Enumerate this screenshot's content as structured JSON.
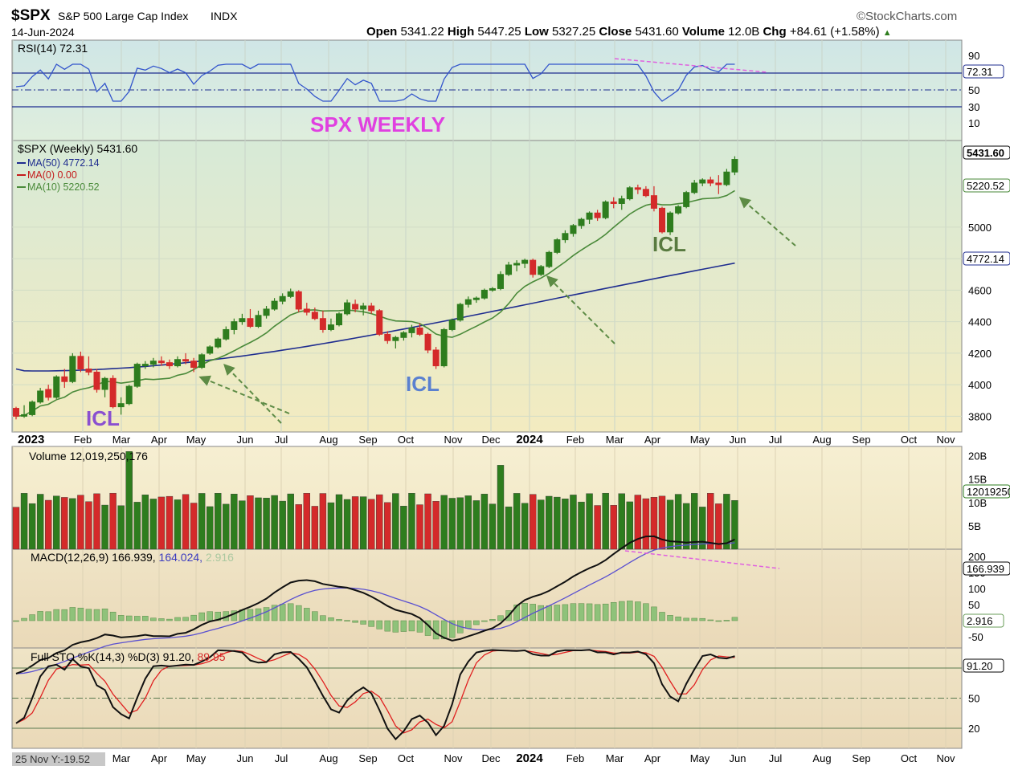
{
  "header": {
    "symbol": "$SPX",
    "name": "S&P 500 Large Cap Index",
    "exchange": "INDX",
    "date": "14-Jun-2024",
    "brand": "©StockCharts.com",
    "quote": {
      "open_label": "Open",
      "open": "5341.22",
      "high_label": "High",
      "high": "5447.25",
      "low_label": "Low",
      "low": "5327.25",
      "close_label": "Close",
      "close": "5431.60",
      "volume_label": "Volume",
      "volume": "12.0B",
      "chg_label": "Chg",
      "chg": "+84.61 (+1.58%)",
      "chg_arrow": "▲"
    }
  },
  "colors": {
    "up": "#2e7d1e",
    "down": "#d42a2a",
    "ma50": "#1f2d8f",
    "ma0": "#c41b1b",
    "ma10": "#4a8a3a",
    "annot_pink": "#e040e0",
    "annot_arrow": "#5d8b45",
    "icl_blue": "#5a80d0",
    "icl_purple": "#8a50d0",
    "icl_green": "#587a40"
  },
  "annotations": {
    "title": "SPX WEEKLY",
    "icl_1": "ICL",
    "icl_2": "ICL",
    "icl_3": "ICL"
  },
  "panels": {
    "rsi": {
      "label": "RSI(14) 72.31",
      "value_tag": "72.31",
      "ticks": [
        "90",
        "70",
        "50",
        "30",
        "10"
      ]
    },
    "price": {
      "label": "$SPX (Weekly) 5431.60",
      "ma50": "MA(50) 4772.14",
      "ma0": "MA(0) 0.00",
      "ma10": "MA(10) 5220.52",
      "tags": {
        "close": "5431.60",
        "ma10": "5220.52",
        "ma50": "4772.14"
      },
      "ticks": [
        "5000",
        "4800",
        "4600",
        "4400",
        "4200",
        "4000",
        "3800"
      ]
    },
    "volume": {
      "label": "Volume 12,019,250,176",
      "value_tag": "12019250176",
      "ticks": [
        "20B",
        "15B",
        "10B",
        "5B"
      ]
    },
    "macd": {
      "label": "MACD(12,26,9)",
      "v1": "166.939,",
      "v2": "164.024,",
      "v3": "2.916",
      "tags": {
        "macd": "166.939",
        "hist": "2.916"
      },
      "ticks": [
        "200",
        "150",
        "100",
        "50",
        "0",
        "-50"
      ]
    },
    "sto": {
      "label": "Full STO %K(14,3) %D(3)",
      "v1": "91.20,",
      "v2": "89.95",
      "value_tag": "91.20",
      "ticks": [
        "80",
        "50",
        "20"
      ]
    }
  },
  "x_axis": {
    "labels": [
      "2023",
      "Feb",
      "Mar",
      "Apr",
      "May",
      "Jun",
      "Jul",
      "Aug",
      "Sep",
      "Oct",
      "Nov",
      "Dec",
      "2024",
      "Feb",
      "Mar",
      "Apr",
      "May",
      "Jun",
      "Jul",
      "Aug",
      "Sep",
      "Oct",
      "Nov"
    ],
    "bottom_labels": [
      "Mar",
      "Apr",
      "May",
      "Jun",
      "Jul",
      "Aug",
      "Sep",
      "Oct",
      "Nov",
      "Dec",
      "2024",
      "Feb",
      "Mar",
      "Apr",
      "May",
      "Jun",
      "Jul",
      "Aug",
      "Sep",
      "Oct",
      "Nov"
    ],
    "cursor_readout": "25 Nov Y:-19.52"
  },
  "chart_data": {
    "type": "candlestick",
    "title": "$SPX (Weekly)",
    "ylim": [
      3700,
      5550
    ],
    "series": [
      {
        "name": "$SPX (Weekly)",
        "candles": [
          [
            3850,
            3860,
            3780,
            3800
          ],
          [
            3800,
            3870,
            3790,
            3810
          ],
          [
            3810,
            3900,
            3800,
            3890
          ],
          [
            3890,
            3980,
            3880,
            3960
          ],
          [
            3970,
            4000,
            3900,
            3920
          ],
          [
            3920,
            4060,
            3910,
            4050
          ],
          [
            4050,
            4100,
            3980,
            4020
          ],
          [
            4020,
            4200,
            4010,
            4180
          ],
          [
            4180,
            4210,
            4080,
            4100
          ],
          [
            4100,
            4180,
            4060,
            4080
          ],
          [
            4080,
            4100,
            3950,
            3970
          ],
          [
            3970,
            4050,
            3920,
            4040
          ],
          [
            4040,
            4060,
            3850,
            3860
          ],
          [
            3860,
            3920,
            3810,
            3880
          ],
          [
            3880,
            4000,
            3870,
            3990
          ],
          [
            3990,
            4140,
            3980,
            4130
          ],
          [
            4120,
            4150,
            4100,
            4130
          ],
          [
            4130,
            4170,
            4110,
            4150
          ],
          [
            4150,
            4180,
            4120,
            4140
          ],
          [
            4140,
            4160,
            4100,
            4120
          ],
          [
            4120,
            4180,
            4110,
            4160
          ],
          [
            4160,
            4200,
            4130,
            4150
          ],
          [
            4150,
            4170,
            4080,
            4110
          ],
          [
            4110,
            4200,
            4100,
            4190
          ],
          [
            4200,
            4250,
            4190,
            4240
          ],
          [
            4240,
            4300,
            4230,
            4290
          ],
          [
            4290,
            4370,
            4280,
            4350
          ],
          [
            4350,
            4420,
            4320,
            4400
          ],
          [
            4400,
            4450,
            4380,
            4420
          ],
          [
            4420,
            4480,
            4360,
            4370
          ],
          [
            4370,
            4470,
            4360,
            4440
          ],
          [
            4440,
            4500,
            4420,
            4480
          ],
          [
            4480,
            4550,
            4470,
            4530
          ],
          [
            4530,
            4580,
            4510,
            4560
          ],
          [
            4560,
            4610,
            4550,
            4590
          ],
          [
            4590,
            4600,
            4460,
            4480
          ],
          [
            4480,
            4520,
            4440,
            4460
          ],
          [
            4460,
            4490,
            4410,
            4420
          ],
          [
            4420,
            4470,
            4330,
            4350
          ],
          [
            4350,
            4420,
            4340,
            4380
          ],
          [
            4380,
            4460,
            4370,
            4450
          ],
          [
            4450,
            4540,
            4440,
            4520
          ],
          [
            4510,
            4540,
            4460,
            4480
          ],
          [
            4480,
            4520,
            4440,
            4500
          ],
          [
            4500,
            4520,
            4450,
            4470
          ],
          [
            4470,
            4480,
            4310,
            4320
          ],
          [
            4320,
            4340,
            4260,
            4280
          ],
          [
            4280,
            4310,
            4230,
            4300
          ],
          [
            4300,
            4340,
            4280,
            4330
          ],
          [
            4330,
            4380,
            4300,
            4360
          ],
          [
            4360,
            4390,
            4310,
            4320
          ],
          [
            4320,
            4330,
            4200,
            4220
          ],
          [
            4220,
            4240,
            4100,
            4120
          ],
          [
            4120,
            4360,
            4110,
            4350
          ],
          [
            4350,
            4420,
            4340,
            4410
          ],
          [
            4410,
            4520,
            4400,
            4510
          ],
          [
            4510,
            4560,
            4490,
            4540
          ],
          [
            4540,
            4560,
            4520,
            4550
          ],
          [
            4550,
            4610,
            4540,
            4600
          ],
          [
            4600,
            4620,
            4590,
            4610
          ],
          [
            4610,
            4720,
            4600,
            4700
          ],
          [
            4700,
            4780,
            4690,
            4760
          ],
          [
            4760,
            4790,
            4720,
            4770
          ],
          [
            4770,
            4800,
            4740,
            4790
          ],
          [
            4790,
            4800,
            4680,
            4700
          ],
          [
            4700,
            4760,
            4690,
            4750
          ],
          [
            4750,
            4850,
            4740,
            4840
          ],
          [
            4840,
            4930,
            4830,
            4920
          ],
          [
            4920,
            4980,
            4900,
            4960
          ],
          [
            4960,
            5020,
            4940,
            5010
          ],
          [
            5010,
            5060,
            4990,
            5050
          ],
          [
            5050,
            5100,
            5020,
            5090
          ],
          [
            5090,
            5110,
            5040,
            5060
          ],
          [
            5060,
            5170,
            5050,
            5160
          ],
          [
            5160,
            5190,
            5120,
            5150
          ],
          [
            5150,
            5200,
            5110,
            5180
          ],
          [
            5180,
            5260,
            5170,
            5250
          ],
          [
            5250,
            5270,
            5210,
            5240
          ],
          [
            5240,
            5260,
            5190,
            5200
          ],
          [
            5200,
            5260,
            5100,
            5120
          ],
          [
            5120,
            5130,
            4960,
            4970
          ],
          [
            4970,
            5100,
            4950,
            5090
          ],
          [
            5090,
            5140,
            5080,
            5130
          ],
          [
            5130,
            5230,
            5120,
            5220
          ],
          [
            5220,
            5300,
            5210,
            5280
          ],
          [
            5280,
            5310,
            5260,
            5300
          ],
          [
            5300,
            5320,
            5260,
            5280
          ],
          [
            5280,
            5330,
            5210,
            5270
          ],
          [
            5270,
            5370,
            5260,
            5350
          ],
          [
            5350,
            5450,
            5330,
            5430
          ]
        ]
      },
      {
        "name": "MA(50)",
        "values_first": 4100,
        "values_last": 4772.14
      },
      {
        "name": "MA(10)",
        "values_last": 5220.52
      }
    ],
    "volume_ylim": [
      0,
      22
    ],
    "rsi_last": 72.31,
    "macd_last": [
      166.939,
      164.024,
      2.916
    ],
    "sto_last": [
      91.2,
      89.95
    ]
  }
}
